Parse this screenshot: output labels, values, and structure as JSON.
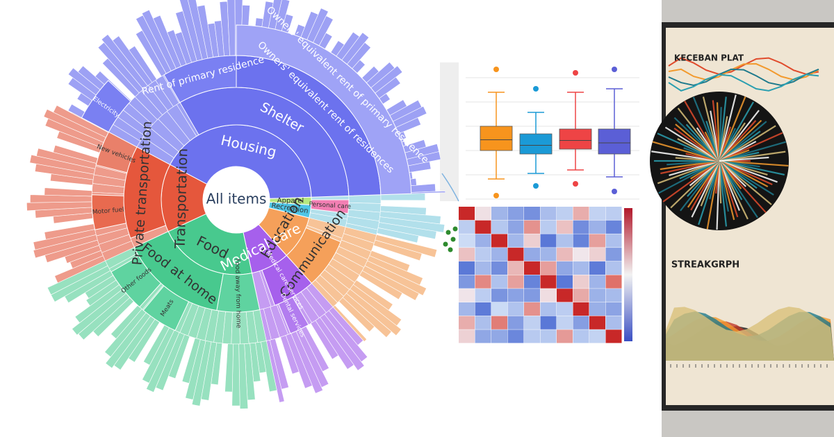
{
  "sunburst": {
    "center": "All items",
    "nodes": [
      {
        "label": "Housing"
      },
      {
        "label": "Apparel"
      },
      {
        "label": "Recreation"
      },
      {
        "label": "Education"
      },
      {
        "label": "Medical care"
      },
      {
        "label": "Food"
      },
      {
        "label": "Transportation"
      },
      {
        "label": "Shelter"
      },
      {
        "label": "Personal care"
      },
      {
        "label": "Communication"
      },
      {
        "label": "Medical care services"
      },
      {
        "label": "Food at home"
      },
      {
        "label": "Food away from home"
      },
      {
        "label": "Private transportation"
      },
      {
        "label": "Owners' equivalent rent of residences"
      },
      {
        "label": "Rent of primary residence"
      },
      {
        "label": "Electricity"
      },
      {
        "label": "Motor fuel"
      },
      {
        "label": "New vehicles"
      },
      {
        "label": "Other foods"
      },
      {
        "label": "Meats"
      },
      {
        "label": "Dental services"
      },
      {
        "label": "Owners' equivalent rent of primary residence"
      }
    ]
  },
  "poster": {
    "title": "KECEBAN PLAT",
    "subtitle": "STREAKGRPH"
  }
}
